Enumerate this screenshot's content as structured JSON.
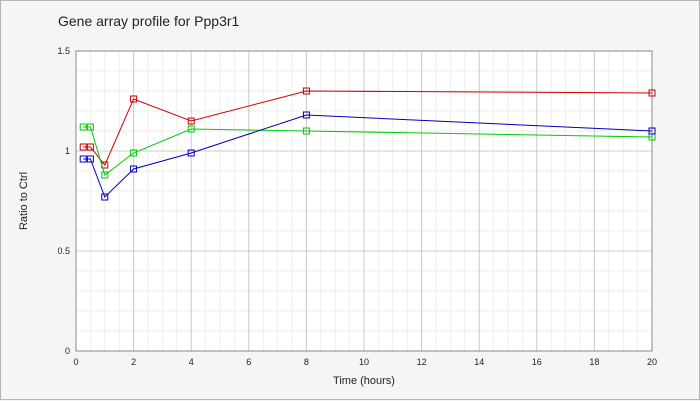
{
  "chart_data": {
    "type": "line",
    "title": "Gene array profile for Ppp3r1",
    "xlabel": "Time (hours)",
    "ylabel": "Ratio to Ctrl",
    "xlim": [
      0,
      20
    ],
    "ylim": [
      0,
      1.5
    ],
    "x_major_ticks": [
      0,
      2,
      4,
      6,
      8,
      10,
      12,
      14,
      16,
      18,
      20
    ],
    "x_tick_labels": [
      "0",
      "2",
      "4",
      "6",
      "8",
      "10",
      "12",
      "14",
      "16",
      "18",
      "20"
    ],
    "y_major_ticks": [
      0,
      0.5,
      1,
      1.5
    ],
    "y_tick_labels": [
      "0",
      "0.5",
      "1",
      "1.5"
    ],
    "grid": true,
    "legend": "none",
    "series": [
      {
        "color": "#cc0000",
        "x": [
          0.25,
          0.5,
          1,
          2,
          4,
          8,
          20
        ],
        "values": [
          1.02,
          1.02,
          0.93,
          1.26,
          1.15,
          1.3,
          1.29
        ]
      },
      {
        "color": "#00cc00",
        "x": [
          0.25,
          0.5,
          1,
          2,
          4,
          8,
          20
        ],
        "values": [
          1.12,
          1.12,
          0.88,
          0.99,
          1.11,
          1.1,
          1.07
        ]
      },
      {
        "color": "#0000bb",
        "x": [
          0.25,
          0.5,
          1,
          2,
          4,
          8,
          20
        ],
        "values": [
          0.96,
          0.96,
          0.77,
          0.91,
          0.99,
          1.18,
          1.1
        ]
      }
    ]
  }
}
